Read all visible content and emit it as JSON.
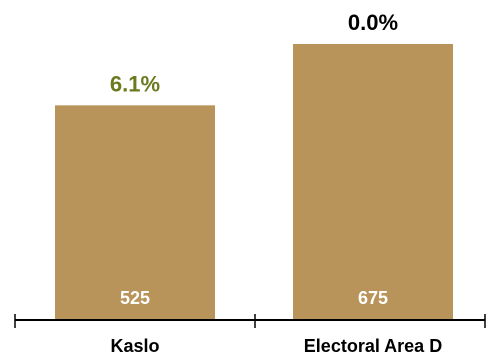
{
  "chart_data": {
    "type": "bar",
    "categories": [
      "Kaslo",
      "Electoral Area D"
    ],
    "values": [
      525,
      675
    ],
    "value_labels": [
      "525",
      "675"
    ],
    "change_labels": [
      "6.1%",
      "0.0%"
    ],
    "change_label_colors": [
      "#6b7a1f",
      "#000000"
    ],
    "bar_color": "#b8935a",
    "ylim": [
      0,
      700
    ],
    "grid": false,
    "legend": "none",
    "title": "",
    "xlabel": "",
    "ylabel": ""
  }
}
